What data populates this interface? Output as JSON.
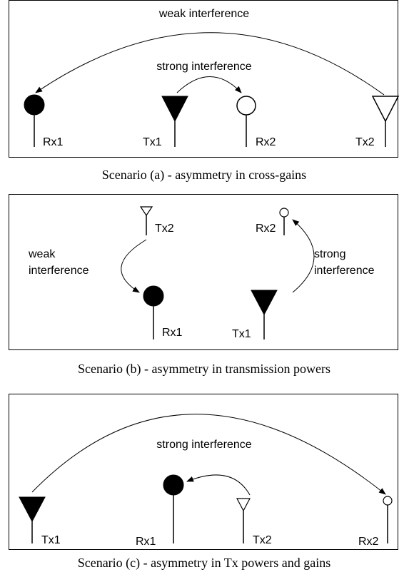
{
  "panels": [
    {
      "annotations": [
        "weak interference",
        "strong interference"
      ],
      "nodes": [
        "Rx1",
        "Tx1",
        "Rx2",
        "Tx2"
      ],
      "caption": "Scenario (a) - asymmetry in cross-gains"
    },
    {
      "annotations": [
        "weak",
        "interference",
        "strong",
        "interference"
      ],
      "nodes": [
        "Tx2",
        "Rx2",
        "Rx1",
        "Tx1"
      ],
      "caption": "Scenario (b) - asymmetry in transmission powers"
    },
    {
      "annotations": [
        "strong interference"
      ],
      "nodes": [
        "Tx1",
        "Rx1",
        "Tx2",
        "Rx2"
      ],
      "caption": "Scenario (c) - asymmetry in Tx powers and gains"
    }
  ]
}
